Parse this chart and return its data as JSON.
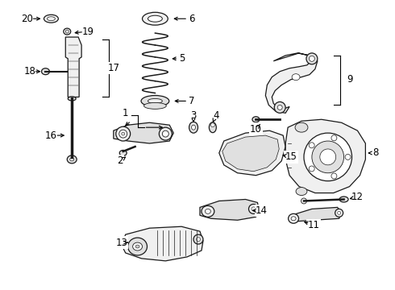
{
  "bg_color": "#ffffff",
  "line_color": "#1a1a1a",
  "fill_light": "#f0f0f0",
  "fill_mid": "#e0e0e0",
  "fill_dark": "#c8c8c8",
  "lw": 0.9,
  "label_fs": 8.5
}
